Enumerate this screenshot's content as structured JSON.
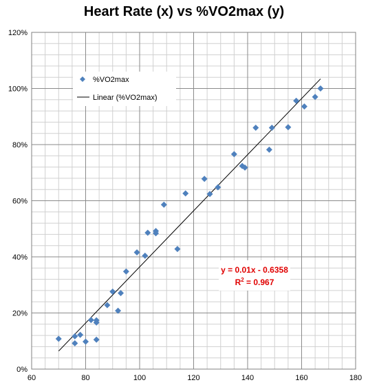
{
  "chart_data": {
    "type": "scatter",
    "title": "Heart Rate (x) vs %VO2max (y)",
    "xlim": [
      60,
      180
    ],
    "ylim": [
      0,
      1.2
    ],
    "x_ticks": [
      60,
      80,
      100,
      120,
      140,
      160,
      180
    ],
    "y_ticks": [
      0,
      0.2,
      0.4,
      0.6,
      0.8,
      1.0,
      1.2
    ],
    "y_tick_labels": [
      "0%",
      "20%",
      "40%",
      "60%",
      "80%",
      "100%",
      "120%"
    ],
    "grid": true,
    "legend_position": "top-left",
    "series": [
      {
        "name": "%VO2max",
        "marker": "diamond",
        "color": "#4f81bd",
        "points": [
          [
            70,
            0.108
          ],
          [
            76,
            0.117
          ],
          [
            76,
            0.092
          ],
          [
            78,
            0.122
          ],
          [
            80,
            0.098
          ],
          [
            82,
            0.175
          ],
          [
            84,
            0.174
          ],
          [
            84,
            0.166
          ],
          [
            84,
            0.105
          ],
          [
            88,
            0.228
          ],
          [
            90,
            0.276
          ],
          [
            92,
            0.208
          ],
          [
            93,
            0.271
          ],
          [
            95,
            0.348
          ],
          [
            99,
            0.416
          ],
          [
            102,
            0.404
          ],
          [
            103,
            0.486
          ],
          [
            106,
            0.492
          ],
          [
            106,
            0.484
          ],
          [
            109,
            0.586
          ],
          [
            114,
            0.428
          ],
          [
            117,
            0.626
          ],
          [
            124,
            0.678
          ],
          [
            126,
            0.624
          ],
          [
            129,
            0.648
          ],
          [
            135,
            0.766
          ],
          [
            138,
            0.724
          ],
          [
            139,
            0.718
          ],
          [
            143,
            0.86
          ],
          [
            148,
            0.782
          ],
          [
            149,
            0.86
          ],
          [
            155,
            0.862
          ],
          [
            158,
            0.956
          ],
          [
            161,
            0.936
          ],
          [
            165,
            0.97
          ],
          [
            167,
            1.0
          ]
        ]
      },
      {
        "name": "Linear (%VO2max)",
        "type": "line",
        "color": "#000000",
        "x_range": [
          70,
          167
        ],
        "slope": 0.01,
        "intercept": -0.6358
      }
    ],
    "annotations": {
      "equation": "y = 0.01x - 0.6358",
      "r_squared_prefix": "R",
      "r_squared_sup": "2",
      "r_squared_value": " = 0.967"
    }
  }
}
